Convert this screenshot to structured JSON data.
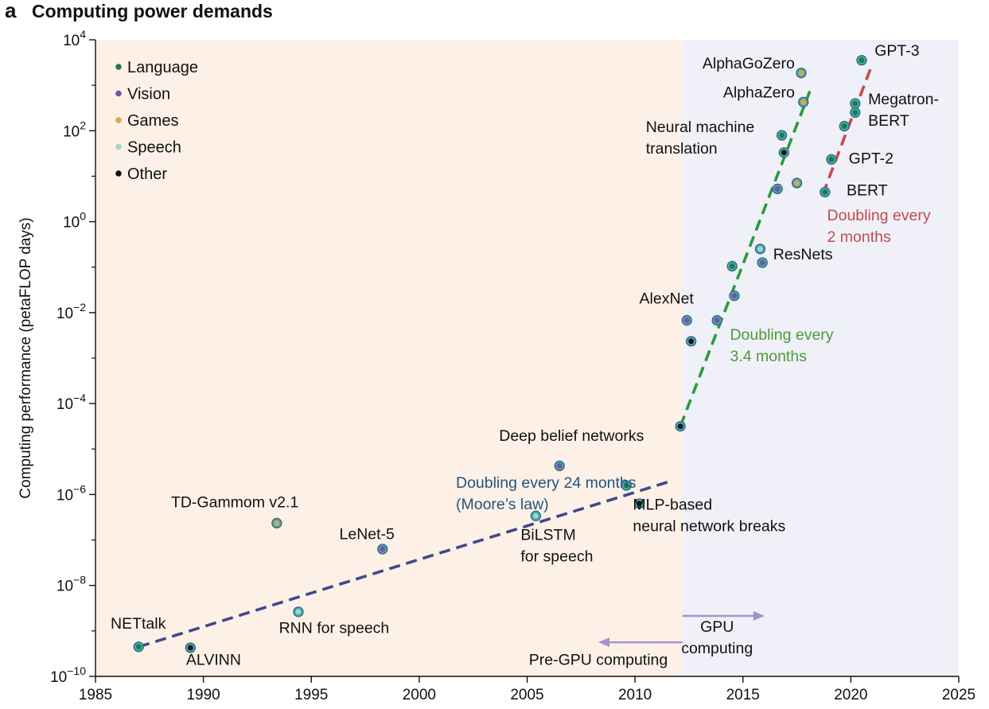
{
  "panel": {
    "letter": "a",
    "title": "Computing power demands"
  },
  "chart_data": {
    "type": "scatter",
    "xlabel": "",
    "ylabel": "Computing performance (petaFLOP days)",
    "xlim": [
      1985,
      2025
    ],
    "ylim_log10": [
      -10,
      4
    ],
    "y_scale": "log10",
    "x_ticks": [
      1985,
      1990,
      1995,
      2000,
      2005,
      2010,
      2015,
      2020,
      2025
    ],
    "y_ticks_exp": [
      -10,
      -8,
      -6,
      -4,
      -2,
      0,
      2,
      4
    ],
    "y_tick_base": "10",
    "grid": false,
    "legend_position": "top-left",
    "regions": [
      {
        "name": "pre-gpu",
        "from": 1985,
        "to": 2012.2,
        "color": "#fdf1e7"
      },
      {
        "name": "gpu",
        "from": 2012.2,
        "to": 2025,
        "color": "#f0f0f8"
      }
    ],
    "categories": [
      {
        "key": "language",
        "name": "Language",
        "color": "#1a7a4c"
      },
      {
        "key": "vision",
        "name": "Vision",
        "color": "#7d4fa6"
      },
      {
        "key": "games",
        "name": "Games",
        "color": "#e5a050"
      },
      {
        "key": "speech",
        "name": "Speech",
        "color": "#9ed7c6"
      },
      {
        "key": "other",
        "name": "Other",
        "color": "#111111"
      }
    ],
    "points": [
      {
        "x": 1987.0,
        "log10y": -9.35,
        "cat": "language"
      },
      {
        "x": 1989.4,
        "log10y": -9.37,
        "cat": "other"
      },
      {
        "x": 1993.4,
        "log10y": -6.63,
        "cat": "games"
      },
      {
        "x": 1994.4,
        "log10y": -8.58,
        "cat": "speech"
      },
      {
        "x": 1998.3,
        "log10y": -7.2,
        "cat": "vision"
      },
      {
        "x": 2005.4,
        "log10y": -6.47,
        "cat": "speech"
      },
      {
        "x": 2006.5,
        "log10y": -5.37,
        "cat": "vision"
      },
      {
        "x": 2009.6,
        "log10y": -5.8,
        "cat": "language"
      },
      {
        "x": 2010.2,
        "log10y": -6.2,
        "cat": "other"
      },
      {
        "x": 2012.1,
        "log10y": -4.5,
        "cat": "other"
      },
      {
        "x": 2012.4,
        "log10y": -2.17,
        "cat": "vision"
      },
      {
        "x": 2012.6,
        "log10y": -2.63,
        "cat": "other"
      },
      {
        "x": 2013.8,
        "log10y": -2.17,
        "cat": "vision"
      },
      {
        "x": 2014.6,
        "log10y": -1.63,
        "cat": "vision"
      },
      {
        "x": 2014.5,
        "log10y": -0.98,
        "cat": "language"
      },
      {
        "x": 2015.8,
        "log10y": -0.6,
        "cat": "speech"
      },
      {
        "x": 2015.9,
        "log10y": -0.9,
        "cat": "vision"
      },
      {
        "x": 2016.6,
        "log10y": 0.72,
        "cat": "vision"
      },
      {
        "x": 2016.8,
        "log10y": 1.9,
        "cat": "language"
      },
      {
        "x": 2016.9,
        "log10y": 1.52,
        "cat": "other"
      },
      {
        "x": 2017.5,
        "log10y": 0.85,
        "cat": "games"
      },
      {
        "x": 2017.7,
        "log10y": 3.27,
        "cat": "games"
      },
      {
        "x": 2017.8,
        "log10y": 2.63,
        "cat": "games"
      },
      {
        "x": 2018.8,
        "log10y": 0.65,
        "cat": "language"
      },
      {
        "x": 2019.1,
        "log10y": 1.37,
        "cat": "language"
      },
      {
        "x": 2019.7,
        "log10y": 2.1,
        "cat": "language"
      },
      {
        "x": 2020.2,
        "log10y": 2.6,
        "cat": "language"
      },
      {
        "x": 2020.2,
        "log10y": 2.4,
        "cat": "language"
      },
      {
        "x": 2020.5,
        "log10y": 3.55,
        "cat": "language"
      }
    ],
    "trend_lines": [
      {
        "x": [
          1987.0,
          2011.7
        ],
        "log10y": [
          -9.35,
          -5.7
        ],
        "color": "#3f4a8c"
      },
      {
        "x": [
          2012.1,
          2018.1
        ],
        "log10y": [
          -4.5,
          2.87
        ],
        "color": "#2a9a3c"
      },
      {
        "x": [
          2018.7,
          2020.9
        ],
        "log10y": [
          0.6,
          3.35
        ],
        "color": "#c24c4c"
      }
    ],
    "arrows": [
      {
        "x": [
          2012.2,
          2016.0
        ],
        "log10y": [
          -8.67,
          -8.67
        ],
        "color": "#a691c9"
      },
      {
        "x": [
          2012.2,
          2008.3
        ],
        "log10y": [
          -9.25,
          -9.25
        ],
        "color": "#a691c9"
      }
    ],
    "annotations": [
      {
        "lines": [
          "NETtalk"
        ],
        "x": 1985.7,
        "log10y": -8.95,
        "color": "#111111",
        "anchor": "start"
      },
      {
        "lines": [
          "ALVINN"
        ],
        "x": 1989.2,
        "log10y": -9.75,
        "color": "#111111",
        "anchor": "start"
      },
      {
        "lines": [
          "TD-Gammom v2.1"
        ],
        "x": 1988.5,
        "log10y": -6.28,
        "color": "#111111",
        "anchor": "start"
      },
      {
        "lines": [
          "RNN for speech"
        ],
        "x": 1993.5,
        "log10y": -9.05,
        "color": "#111111",
        "anchor": "start"
      },
      {
        "lines": [
          "LeNet-5"
        ],
        "x": 1996.3,
        "log10y": -6.98,
        "color": "#111111",
        "anchor": "start"
      },
      {
        "lines": [
          "BiLSTM",
          "for speech"
        ],
        "x": 2004.7,
        "log10y": -7.0,
        "color": "#111111",
        "anchor": "start"
      },
      {
        "lines": [
          "Deep belief networks"
        ],
        "x": 2003.7,
        "log10y": -4.82,
        "color": "#111111",
        "anchor": "start"
      },
      {
        "lines": [
          "Doubling every 24 months",
          "(Moore’s law)"
        ],
        "x": 2001.7,
        "log10y": -5.85,
        "color": "#26537e",
        "anchor": "start"
      },
      {
        "lines": [
          "MLP-based",
          "neural network breaks"
        ],
        "x": 2009.9,
        "log10y": -6.33,
        "color": "#111111",
        "anchor": "start"
      },
      {
        "lines": [
          "AlexNet"
        ],
        "x": 2010.2,
        "log10y": -1.8,
        "color": "#111111",
        "anchor": "start"
      },
      {
        "lines": [
          "Doubling every",
          "3.4 months"
        ],
        "x": 2014.4,
        "log10y": -2.6,
        "color": "#4b9b3a",
        "anchor": "start"
      },
      {
        "lines": [
          "ResNets"
        ],
        "x": 2016.4,
        "log10y": -0.83,
        "color": "#111111",
        "anchor": "start"
      },
      {
        "lines": [
          "Neural machine",
          "translation"
        ],
        "x": 2010.5,
        "log10y": 1.97,
        "color": "#111111",
        "anchor": "start"
      },
      {
        "lines": [
          "AlphaGoZero"
        ],
        "x": 2017.4,
        "log10y": 3.37,
        "color": "#111111",
        "anchor": "end"
      },
      {
        "lines": [
          "AlphaZero"
        ],
        "x": 2017.4,
        "log10y": 2.73,
        "color": "#111111",
        "anchor": "end"
      },
      {
        "lines": [
          "GPT-3"
        ],
        "x": 2021.1,
        "log10y": 3.65,
        "color": "#111111",
        "anchor": "start"
      },
      {
        "lines": [
          "Megatron-",
          "BERT"
        ],
        "x": 2020.8,
        "log10y": 2.58,
        "color": "#111111",
        "anchor": "start"
      },
      {
        "lines": [
          "GPT-2"
        ],
        "x": 2019.9,
        "log10y": 1.28,
        "color": "#111111",
        "anchor": "start"
      },
      {
        "lines": [
          "BERT"
        ],
        "x": 2019.8,
        "log10y": 0.58,
        "color": "#111111",
        "anchor": "start"
      },
      {
        "lines": [
          "Doubling every",
          "2 months"
        ],
        "x": 2018.9,
        "log10y": 0.03,
        "color": "#c24c4c",
        "anchor": "start"
      },
      {
        "lines": [
          "GPU",
          "computing"
        ],
        "x": 2013.8,
        "log10y": -9.02,
        "color": "#111111",
        "anchor": "middle"
      },
      {
        "lines": [
          "Pre-GPU computing"
        ],
        "x": 2008.3,
        "log10y": -9.75,
        "color": "#111111",
        "anchor": "middle"
      }
    ]
  }
}
